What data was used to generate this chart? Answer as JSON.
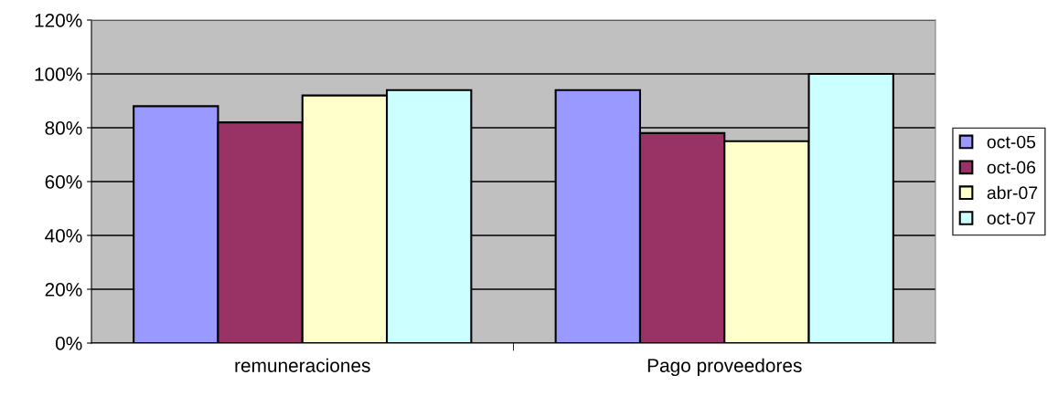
{
  "chart_data": {
    "type": "bar",
    "categories": [
      "remuneraciones",
      "Pago proveedores"
    ],
    "series": [
      {
        "name": "oct-05",
        "color": "#9999ff",
        "values": [
          88,
          94
        ]
      },
      {
        "name": "oct-06",
        "color": "#993366",
        "values": [
          82,
          78
        ]
      },
      {
        "name": "abr-07",
        "color": "#ffffcc",
        "values": [
          92,
          75
        ]
      },
      {
        "name": "oct-07",
        "color": "#ccffff",
        "values": [
          94,
          100
        ]
      }
    ],
    "ylim": [
      0,
      120
    ],
    "yticks": [
      {
        "value": 0,
        "label": "0%"
      },
      {
        "value": 20,
        "label": "20%"
      },
      {
        "value": 40,
        "label": "40%"
      },
      {
        "value": 60,
        "label": "60%"
      },
      {
        "value": 80,
        "label": "80%"
      },
      {
        "value": 100,
        "label": "100%"
      },
      {
        "value": 120,
        "label": "120%"
      }
    ],
    "grid": "y",
    "legend": "right"
  }
}
